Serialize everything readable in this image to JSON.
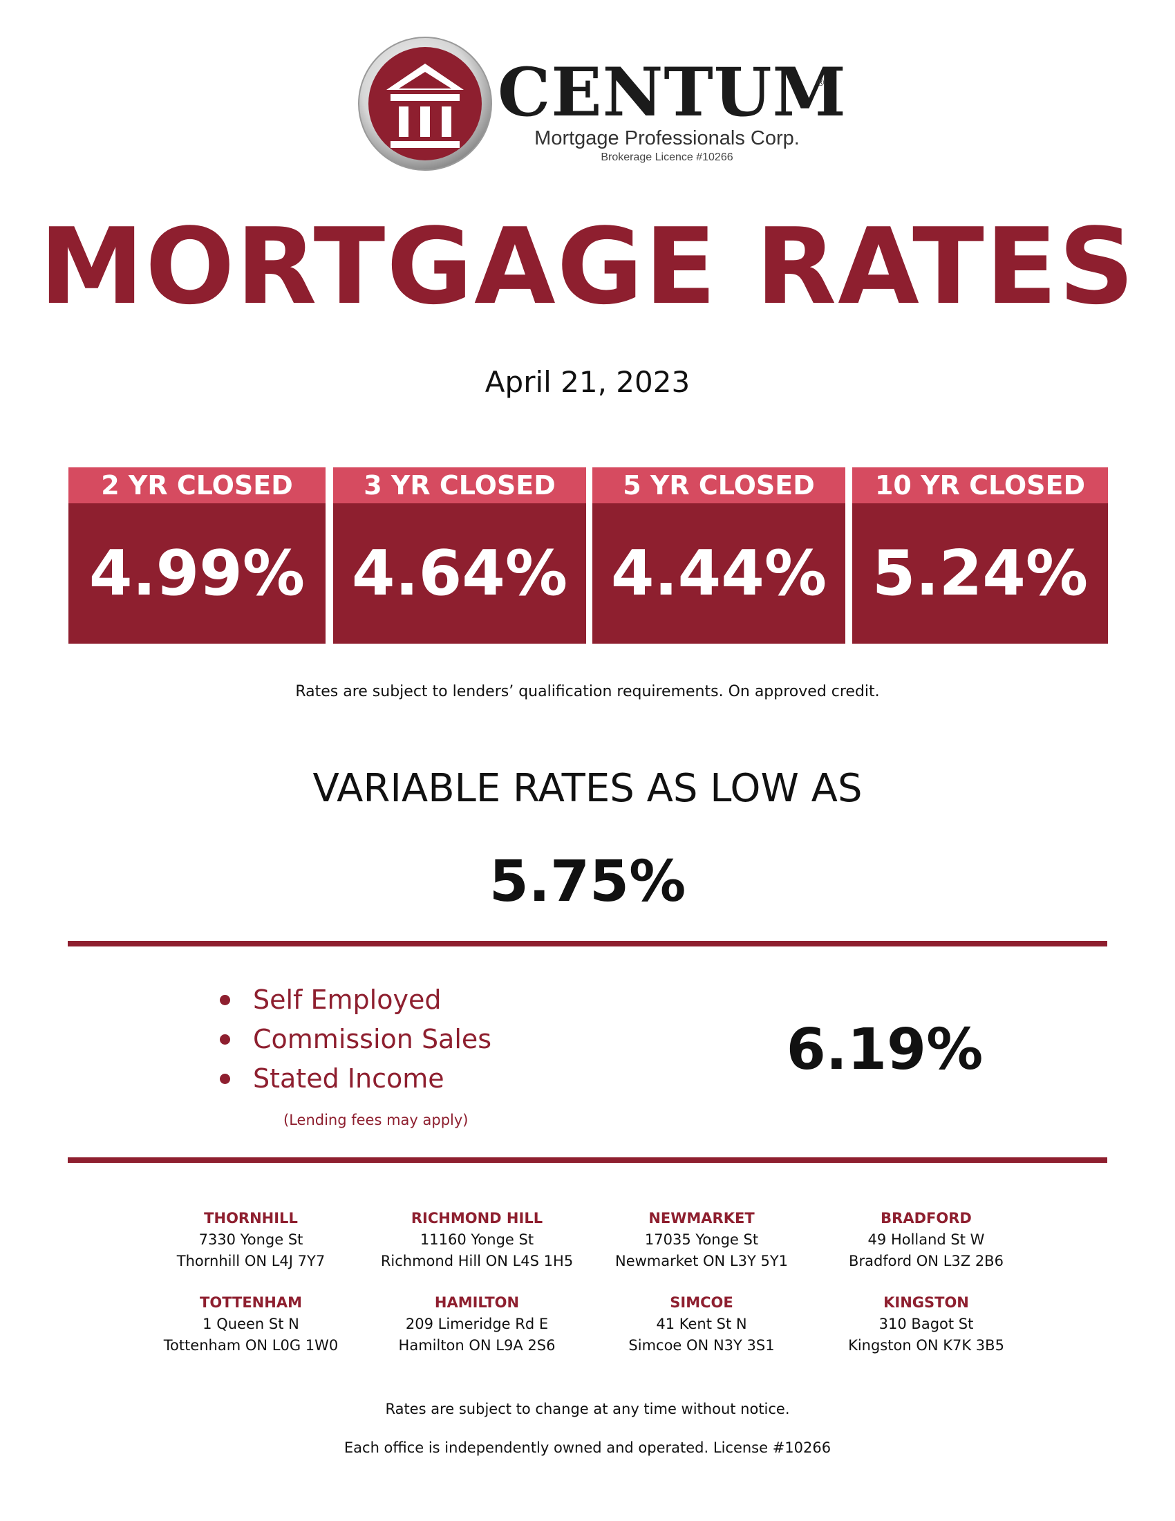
{
  "logo": {
    "name": "CENTUM",
    "registered_mark": "®",
    "subtitle": "Mortgage Professionals Corp.",
    "licence": "Brokerage Licence #10266"
  },
  "title": "MORTGAGE RATES",
  "date": "April 21, 2023",
  "fixed_rates": [
    {
      "term": "2 YR CLOSED",
      "rate": "4.99%"
    },
    {
      "term": "3 YR CLOSED",
      "rate": "4.64%"
    },
    {
      "term": "5 YR CLOSED",
      "rate": "4.44%"
    },
    {
      "term": "10 YR CLOSED",
      "rate": "5.24%"
    }
  ],
  "rates_disclaimer": "Rates are subject to lenders’ qualification requirements. On approved credit.",
  "variable": {
    "heading": "VARIABLE RATES AS LOW AS",
    "rate": "5.75%"
  },
  "special": {
    "items": [
      "Self Employed",
      "Commission Sales",
      "Stated Income"
    ],
    "note": "(Lending fees may apply)",
    "rate": "6.19%"
  },
  "offices": [
    {
      "name": "THORNHILL",
      "street": "7330 Yonge St",
      "city": "Thornhill ON  L4J 7Y7"
    },
    {
      "name": "RICHMOND HILL",
      "street": "11160 Yonge St",
      "city": "Richmond Hill ON  L4S 1H5"
    },
    {
      "name": "NEWMARKET",
      "street": "17035 Yonge St",
      "city": "Newmarket ON  L3Y 5Y1"
    },
    {
      "name": "BRADFORD",
      "street": "49 Holland St W",
      "city": "Bradford ON  L3Z 2B6"
    },
    {
      "name": "TOTTENHAM",
      "street": "1 Queen St N",
      "city": "Tottenham ON  L0G 1W0"
    },
    {
      "name": "HAMILTON",
      "street": "209 Limeridge Rd E",
      "city": "Hamilton ON  L9A 2S6"
    },
    {
      "name": "SIMCOE",
      "street": "41 Kent St N",
      "city": "Simcoe ON  N3Y 3S1"
    },
    {
      "name": "KINGSTON",
      "street": "310 Bagot St",
      "city": "Kingston ON  K7K 3B5"
    }
  ],
  "footer": {
    "change_notice": "Rates are subject to change at any time without notice.",
    "ownership": "Each office is independently owned and operated. License #10266"
  }
}
